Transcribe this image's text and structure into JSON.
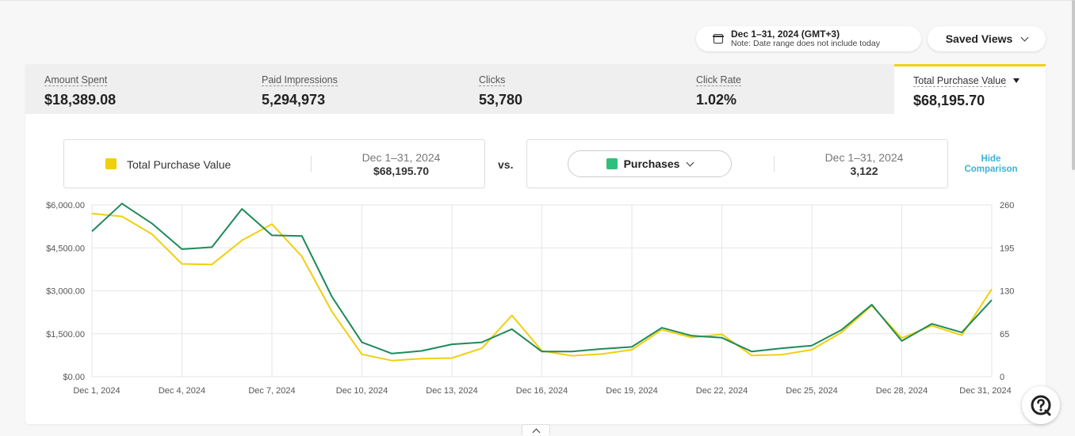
{
  "date_range": {
    "label": "Dec 1–31, 2024 (GMT+3)",
    "note": "Note: Date range does not include today",
    "icon": "calendar-icon"
  },
  "saved_views": {
    "label": "Saved Views",
    "icon": "chevron-down-icon"
  },
  "metrics": [
    {
      "label": "Amount Spent",
      "value": "$18,389.08"
    },
    {
      "label": "Paid Impressions",
      "value": "5,294,973"
    },
    {
      "label": "Clicks",
      "value": "53,780"
    },
    {
      "label": "Click Rate",
      "value": "1.02%"
    },
    {
      "label": "Total Purchase Value",
      "value": "$68,195.70",
      "selected": true
    }
  ],
  "comparison": {
    "primary": {
      "label": "Total Purchase Value",
      "date": "Dec 1–31, 2024",
      "value": "$68,195.70",
      "color": "#f1cf0e"
    },
    "vs": "vs.",
    "secondary": {
      "label": "Purchases",
      "date": "Dec 1–31, 2024",
      "value": "3,122",
      "color": "#2fbf7d"
    },
    "hide_label_1": "Hide",
    "hide_label_2": "Comparison"
  },
  "chart_data": {
    "type": "line",
    "x": [
      "Dec 1, 2024",
      "Dec 2, 2024",
      "Dec 3, 2024",
      "Dec 4, 2024",
      "Dec 5, 2024",
      "Dec 6, 2024",
      "Dec 7, 2024",
      "Dec 8, 2024",
      "Dec 9, 2024",
      "Dec 10, 2024",
      "Dec 11, 2024",
      "Dec 12, 2024",
      "Dec 13, 2024",
      "Dec 14, 2024",
      "Dec 15, 2024",
      "Dec 16, 2024",
      "Dec 17, 2024",
      "Dec 18, 2024",
      "Dec 19, 2024",
      "Dec 20, 2024",
      "Dec 21, 2024",
      "Dec 22, 2024",
      "Dec 23, 2024",
      "Dec 24, 2024",
      "Dec 25, 2024",
      "Dec 26, 2024",
      "Dec 27, 2024",
      "Dec 28, 2024",
      "Dec 29, 2024",
      "Dec 30, 2024",
      "Dec 31, 2024"
    ],
    "x_tick_labels": [
      "Dec 1, 2024",
      "Dec 4, 2024",
      "Dec 7, 2024",
      "Dec 10, 2024",
      "Dec 13, 2024",
      "Dec 16, 2024",
      "Dec 19, 2024",
      "Dec 22, 2024",
      "Dec 25, 2024",
      "Dec 28, 2024",
      "Dec 31, 2024"
    ],
    "series": [
      {
        "name": "Total Purchase Value",
        "axis": "left",
        "color": "#f1cf0e",
        "values": [
          5700,
          5600,
          4980,
          3940,
          3920,
          4760,
          5330,
          4200,
          2270,
          780,
          560,
          630,
          650,
          990,
          2140,
          900,
          730,
          790,
          940,
          1640,
          1370,
          1480,
          740,
          770,
          940,
          1550,
          2480,
          1350,
          1780,
          1450,
          3060
        ]
      },
      {
        "name": "Purchases",
        "axis": "right",
        "color": "#1e8a5a",
        "values": [
          220,
          262,
          232,
          193,
          196,
          254,
          214,
          213,
          121,
          52,
          35,
          39,
          49,
          52,
          72,
          38,
          38,
          42,
          45,
          74,
          62,
          59,
          38,
          43,
          47,
          71,
          109,
          54,
          80,
          67,
          116
        ]
      }
    ],
    "y_left": {
      "ticks": [
        "$0.00",
        "$1,500.00",
        "$3,000.00",
        "$4,500.00",
        "$6,000.00"
      ],
      "lim": [
        0,
        6000
      ]
    },
    "y_right": {
      "ticks": [
        "0",
        "65",
        "130",
        "195",
        "260"
      ],
      "lim": [
        0,
        260
      ]
    },
    "grid": true
  },
  "help": {
    "icon": "question-icon"
  }
}
